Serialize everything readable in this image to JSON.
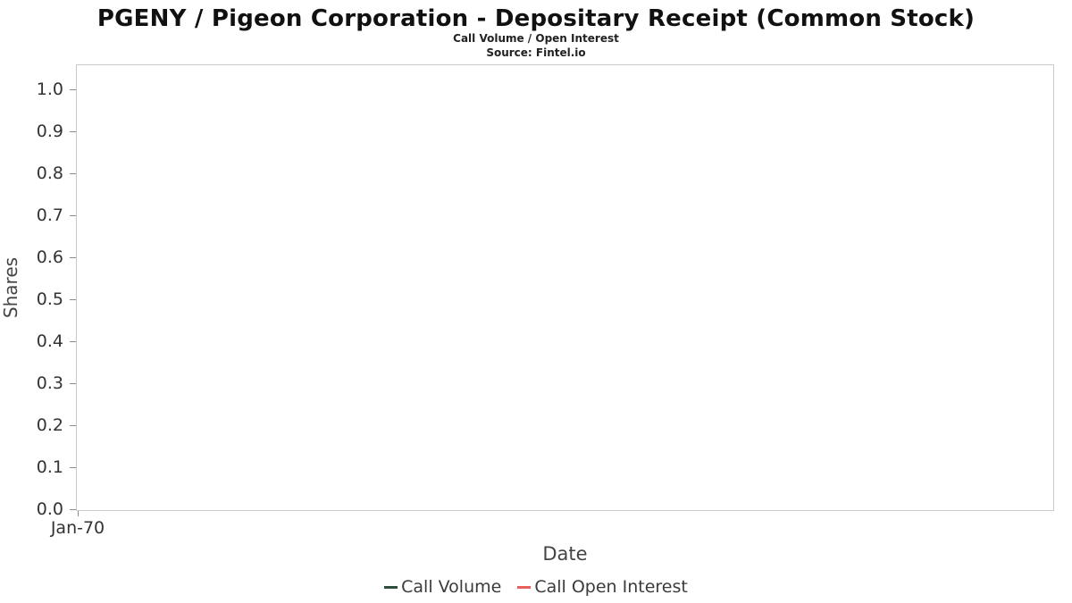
{
  "chart_data": {
    "type": "line",
    "title": "PGENY / Pigeon Corporation - Depositary Receipt (Common Stock)",
    "subtitle": "Call Volume / Open Interest",
    "source": "Source: Fintel.io",
    "xlabel": "Date",
    "ylabel": "Shares",
    "ylim": [
      0.0,
      1.0
    ],
    "ytick_step": 0.1,
    "yticks": [
      "1.0",
      "0.9",
      "0.8",
      "0.7",
      "0.6",
      "0.5",
      "0.4",
      "0.3",
      "0.2",
      "0.1",
      "0.0"
    ],
    "xticks": [
      "Jan-70"
    ],
    "grid": false,
    "legend_position": "bottom",
    "series": [
      {
        "name": "Call Volume",
        "color": "#2d4f3e",
        "x": [],
        "values": []
      },
      {
        "name": "Call Open Interest",
        "color": "#e8605c",
        "x": [],
        "values": []
      }
    ]
  }
}
